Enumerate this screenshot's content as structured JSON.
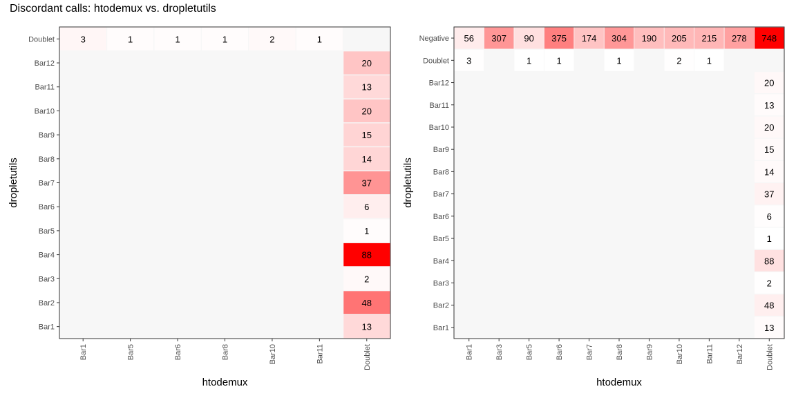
{
  "title": "Discordant calls: htodemux vs. dropletutils",
  "colors": {
    "low": "#ffffff",
    "high": "#ff0000",
    "panel_bg": "#f7f7f7",
    "border": "#333333"
  },
  "chart_data": [
    {
      "type": "heatmap",
      "xlabel": "htodemux",
      "ylabel": "dropletutils",
      "x_categories": [
        "Bar1",
        "Bar5",
        "Bar6",
        "Bar8",
        "Bar10",
        "Bar11",
        "Doublet"
      ],
      "y_categories": [
        "Doublet",
        "Bar12",
        "Bar11",
        "Bar10",
        "Bar9",
        "Bar8",
        "Bar7",
        "Bar6",
        "Bar5",
        "Bar4",
        "Bar3",
        "Bar2",
        "Bar1"
      ],
      "color_range": [
        0,
        88
      ],
      "cells": [
        {
          "x": "Bar1",
          "y": "Doublet",
          "value": 3
        },
        {
          "x": "Bar5",
          "y": "Doublet",
          "value": 1
        },
        {
          "x": "Bar6",
          "y": "Doublet",
          "value": 1
        },
        {
          "x": "Bar8",
          "y": "Doublet",
          "value": 1
        },
        {
          "x": "Bar10",
          "y": "Doublet",
          "value": 2
        },
        {
          "x": "Bar11",
          "y": "Doublet",
          "value": 1
        },
        {
          "x": "Doublet",
          "y": "Bar12",
          "value": 20
        },
        {
          "x": "Doublet",
          "y": "Bar11",
          "value": 13
        },
        {
          "x": "Doublet",
          "y": "Bar10",
          "value": 20
        },
        {
          "x": "Doublet",
          "y": "Bar9",
          "value": 15
        },
        {
          "x": "Doublet",
          "y": "Bar8",
          "value": 14
        },
        {
          "x": "Doublet",
          "y": "Bar7",
          "value": 37
        },
        {
          "x": "Doublet",
          "y": "Bar6",
          "value": 6
        },
        {
          "x": "Doublet",
          "y": "Bar5",
          "value": 1
        },
        {
          "x": "Doublet",
          "y": "Bar4",
          "value": 88
        },
        {
          "x": "Doublet",
          "y": "Bar3",
          "value": 2
        },
        {
          "x": "Doublet",
          "y": "Bar2",
          "value": 48
        },
        {
          "x": "Doublet",
          "y": "Bar1",
          "value": 13
        }
      ]
    },
    {
      "type": "heatmap",
      "xlabel": "htodemux",
      "ylabel": "dropletutils",
      "x_categories": [
        "Bar1",
        "Bar3",
        "Bar5",
        "Bar6",
        "Bar7",
        "Bar8",
        "Bar9",
        "Bar10",
        "Bar11",
        "Bar12",
        "Doublet"
      ],
      "y_categories": [
        "Negative",
        "Doublet",
        "Bar12",
        "Bar11",
        "Bar10",
        "Bar9",
        "Bar8",
        "Bar7",
        "Bar6",
        "Bar5",
        "Bar4",
        "Bar3",
        "Bar2",
        "Bar1"
      ],
      "color_range": [
        0,
        748
      ],
      "cells": [
        {
          "x": "Bar1",
          "y": "Negative",
          "value": 56
        },
        {
          "x": "Bar3",
          "y": "Negative",
          "value": 307
        },
        {
          "x": "Bar5",
          "y": "Negative",
          "value": 90
        },
        {
          "x": "Bar6",
          "y": "Negative",
          "value": 375
        },
        {
          "x": "Bar7",
          "y": "Negative",
          "value": 174
        },
        {
          "x": "Bar8",
          "y": "Negative",
          "value": 304
        },
        {
          "x": "Bar9",
          "y": "Negative",
          "value": 190
        },
        {
          "x": "Bar10",
          "y": "Negative",
          "value": 205
        },
        {
          "x": "Bar11",
          "y": "Negative",
          "value": 215
        },
        {
          "x": "Bar12",
          "y": "Negative",
          "value": 278
        },
        {
          "x": "Doublet",
          "y": "Negative",
          "value": 748
        },
        {
          "x": "Bar1",
          "y": "Doublet",
          "value": 3
        },
        {
          "x": "Bar5",
          "y": "Doublet",
          "value": 1
        },
        {
          "x": "Bar6",
          "y": "Doublet",
          "value": 1
        },
        {
          "x": "Bar8",
          "y": "Doublet",
          "value": 1
        },
        {
          "x": "Bar10",
          "y": "Doublet",
          "value": 2
        },
        {
          "x": "Bar11",
          "y": "Doublet",
          "value": 1
        },
        {
          "x": "Doublet",
          "y": "Bar12",
          "value": 20
        },
        {
          "x": "Doublet",
          "y": "Bar11",
          "value": 13
        },
        {
          "x": "Doublet",
          "y": "Bar10",
          "value": 20
        },
        {
          "x": "Doublet",
          "y": "Bar9",
          "value": 15
        },
        {
          "x": "Doublet",
          "y": "Bar8",
          "value": 14
        },
        {
          "x": "Doublet",
          "y": "Bar7",
          "value": 37
        },
        {
          "x": "Doublet",
          "y": "Bar6",
          "value": 6
        },
        {
          "x": "Doublet",
          "y": "Bar5",
          "value": 1
        },
        {
          "x": "Doublet",
          "y": "Bar4",
          "value": 88
        },
        {
          "x": "Doublet",
          "y": "Bar3",
          "value": 2
        },
        {
          "x": "Doublet",
          "y": "Bar2",
          "value": 48
        },
        {
          "x": "Doublet",
          "y": "Bar1",
          "value": 13
        }
      ]
    }
  ]
}
